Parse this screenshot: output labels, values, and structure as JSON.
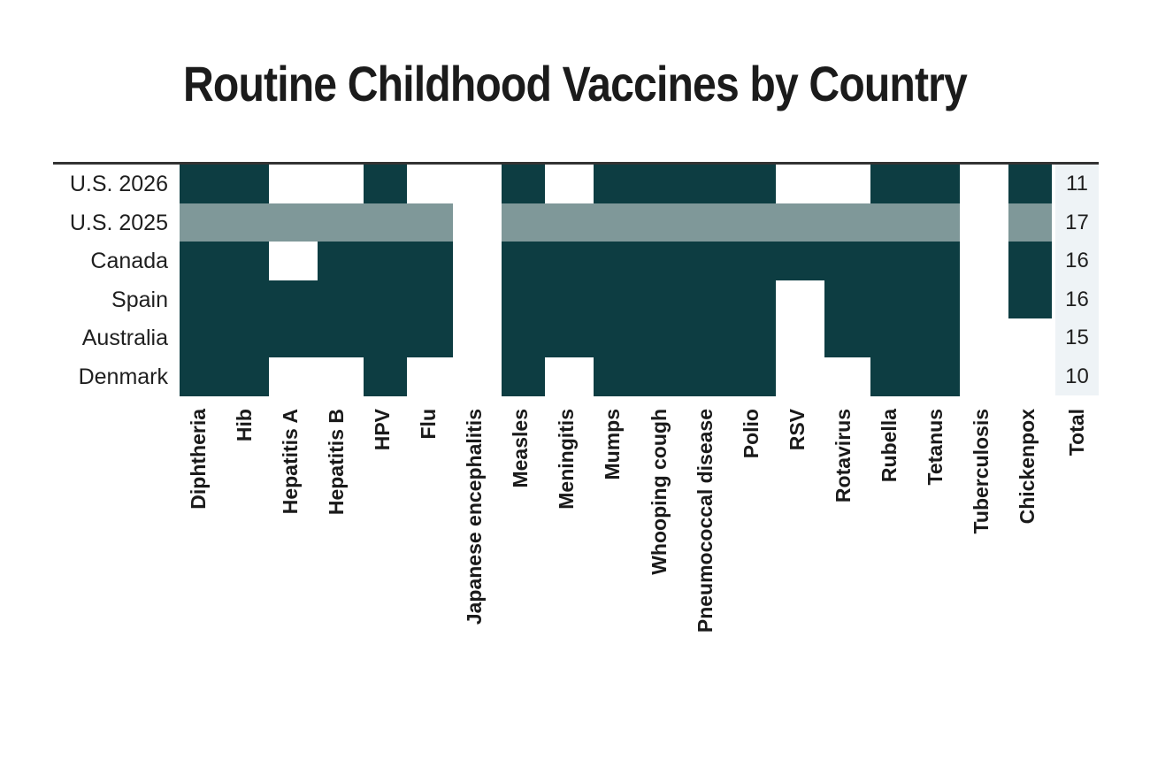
{
  "title": "Routine Childhood Vaccines by Country",
  "chart_data": {
    "type": "heatmap",
    "title": "Routine Childhood Vaccines by Country",
    "rows": [
      "U.S. 2026",
      "U.S. 2025",
      "Canada",
      "Spain",
      "Australia",
      "Denmark"
    ],
    "columns": [
      "Diphtheria",
      "Hib",
      "Hepatitis A",
      "Hepatitis B",
      "HPV",
      "Flu",
      "Japanese encephalitis",
      "Measles",
      "Meningitis",
      "Mumps",
      "Whooping cough",
      "Pneumococcal disease",
      "Polio",
      "RSV",
      "Rotavirus",
      "Rubella",
      "Tetanus",
      "Tuberculosis",
      "Chickenpox"
    ],
    "total_label": "Total",
    "values": [
      [
        1,
        1,
        0,
        0,
        1,
        0,
        0,
        1,
        0,
        1,
        1,
        1,
        1,
        0,
        0,
        1,
        1,
        0,
        1
      ],
      [
        1,
        1,
        1,
        1,
        1,
        1,
        0,
        1,
        1,
        1,
        1,
        1,
        1,
        1,
        1,
        1,
        1,
        0,
        1
      ],
      [
        1,
        1,
        0,
        1,
        1,
        1,
        0,
        1,
        1,
        1,
        1,
        1,
        1,
        1,
        1,
        1,
        1,
        0,
        1
      ],
      [
        1,
        1,
        1,
        1,
        1,
        1,
        0,
        1,
        1,
        1,
        1,
        1,
        1,
        0,
        1,
        1,
        1,
        0,
        1
      ],
      [
        1,
        1,
        1,
        1,
        1,
        1,
        0,
        1,
        1,
        1,
        1,
        1,
        1,
        0,
        1,
        1,
        1,
        0,
        0
      ],
      [
        1,
        1,
        0,
        0,
        1,
        0,
        0,
        1,
        0,
        1,
        1,
        1,
        1,
        0,
        0,
        1,
        1,
        0,
        0
      ]
    ],
    "totals": [
      11,
      17,
      16,
      16,
      15,
      10
    ],
    "highlight_row": "U.S. 2025",
    "colors": {
      "included": "#0d3d42",
      "highlight": "#7f9899",
      "total_bg": "#eef3f6"
    }
  }
}
